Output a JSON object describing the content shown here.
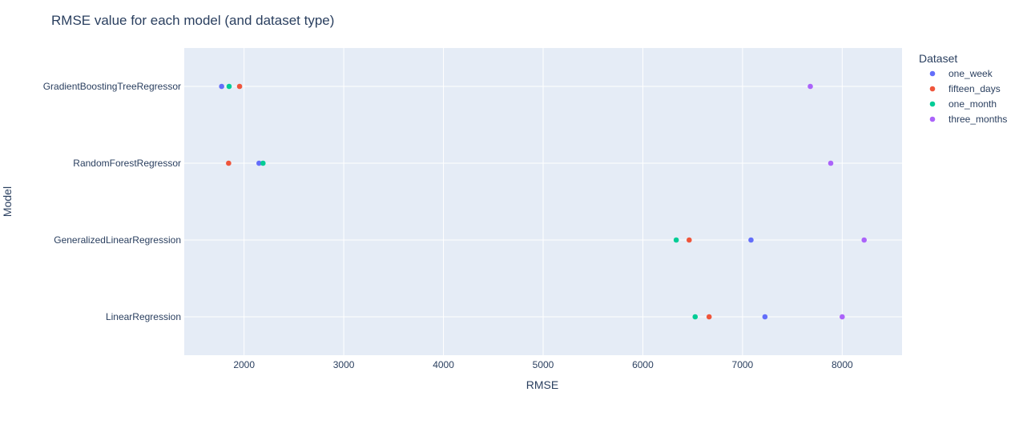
{
  "chart_data": {
    "type": "scatter",
    "title": "RMSE value for each model (and dataset type)",
    "xlabel": "RMSE",
    "ylabel": "Model",
    "xlim": [
      1400,
      8600
    ],
    "xticks": [
      2000,
      3000,
      4000,
      5000,
      6000,
      7000,
      8000
    ],
    "categories": [
      "GradientBoostingTreeRegressor",
      "RandomForestRegressor",
      "GeneralizedLinearRegression",
      "LinearRegression"
    ],
    "grid": true,
    "legend_title": "Dataset",
    "legend_position": "top-right",
    "series": [
      {
        "name": "one_week",
        "color": "#636efa",
        "points": [
          {
            "y": "GradientBoostingTreeRegressor",
            "x": 1775
          },
          {
            "y": "RandomForestRegressor",
            "x": 2150
          },
          {
            "y": "GeneralizedLinearRegression",
            "x": 7085
          },
          {
            "y": "LinearRegression",
            "x": 7225
          }
        ]
      },
      {
        "name": "fifteen_days",
        "color": "#EF553B",
        "points": [
          {
            "y": "GradientBoostingTreeRegressor",
            "x": 1955
          },
          {
            "y": "RandomForestRegressor",
            "x": 1845
          },
          {
            "y": "GeneralizedLinearRegression",
            "x": 6465
          },
          {
            "y": "LinearRegression",
            "x": 6665
          }
        ]
      },
      {
        "name": "one_month",
        "color": "#00cc96",
        "points": [
          {
            "y": "GradientBoostingTreeRegressor",
            "x": 1850
          },
          {
            "y": "RandomForestRegressor",
            "x": 2190
          },
          {
            "y": "GeneralizedLinearRegression",
            "x": 6335
          },
          {
            "y": "LinearRegression",
            "x": 6525
          }
        ]
      },
      {
        "name": "three_months",
        "color": "#ab63fa",
        "points": [
          {
            "y": "GradientBoostingTreeRegressor",
            "x": 7680
          },
          {
            "y": "RandomForestRegressor",
            "x": 7885
          },
          {
            "y": "GeneralizedLinearRegression",
            "x": 8220
          },
          {
            "y": "LinearRegression",
            "x": 8000
          }
        ]
      }
    ]
  }
}
